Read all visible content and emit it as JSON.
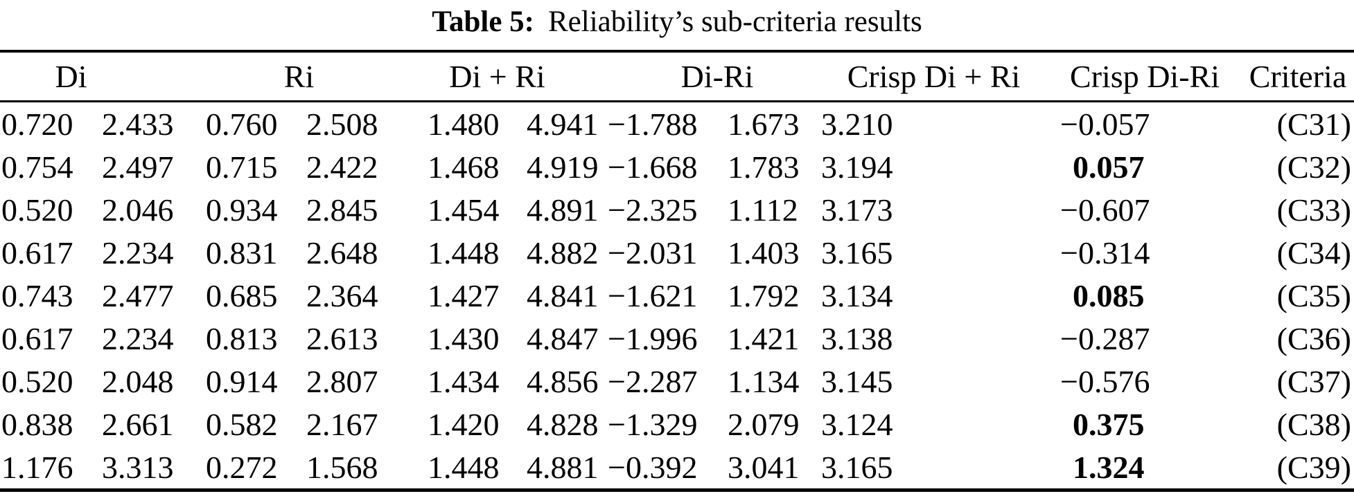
{
  "title": {
    "label": "Table 5:",
    "text": "Reliability’s sub-criteria results"
  },
  "table": {
    "group_headers": [
      {
        "label": "Di",
        "span": 2
      },
      {
        "label": "Ri",
        "span": 2
      },
      {
        "label": "Di + Ri",
        "span": 2
      },
      {
        "label": "Di-Ri",
        "span": 2
      },
      {
        "label": "Crisp Di + Ri",
        "span": 1
      },
      {
        "label": "Crisp Di-Ri",
        "span": 1
      },
      {
        "label": "Criteria",
        "span": 1
      }
    ],
    "column_keys": [
      "di_low",
      "di_high",
      "ri_low",
      "ri_high",
      "di_plus_ri_low",
      "di_plus_ri_high",
      "di_minus_ri_low",
      "di_minus_ri_high",
      "crisp_di_plus_ri",
      "crisp_di_minus_ri",
      "criteria"
    ],
    "rows": [
      {
        "cells": [
          "0.720",
          "2.433",
          "0.760",
          "2.508",
          "1.480",
          "4.941",
          "−1.788",
          "1.673",
          "3.210",
          "−0.057",
          "(C31)"
        ],
        "bold_cols": []
      },
      {
        "cells": [
          "0.754",
          "2.497",
          "0.715",
          "2.422",
          "1.468",
          "4.919",
          "−1.668",
          "1.783",
          "3.194",
          "0.057",
          "(C32)"
        ],
        "bold_cols": [
          9
        ]
      },
      {
        "cells": [
          "0.520",
          "2.046",
          "0.934",
          "2.845",
          "1.454",
          "4.891",
          "−2.325",
          "1.112",
          "3.173",
          "−0.607",
          "(C33)"
        ],
        "bold_cols": []
      },
      {
        "cells": [
          "0.617",
          "2.234",
          "0.831",
          "2.648",
          "1.448",
          "4.882",
          "−2.031",
          "1.403",
          "3.165",
          "−0.314",
          "(C34)"
        ],
        "bold_cols": []
      },
      {
        "cells": [
          "0.743",
          "2.477",
          "0.685",
          "2.364",
          "1.427",
          "4.841",
          "−1.621",
          "1.792",
          "3.134",
          "0.085",
          "(C35)"
        ],
        "bold_cols": [
          9
        ]
      },
      {
        "cells": [
          "0.617",
          "2.234",
          "0.813",
          "2.613",
          "1.430",
          "4.847",
          "−1.996",
          "1.421",
          "3.138",
          "−0.287",
          "(C36)"
        ],
        "bold_cols": []
      },
      {
        "cells": [
          "0.520",
          "2.048",
          "0.914",
          "2.807",
          "1.434",
          "4.856",
          "−2.287",
          "1.134",
          "3.145",
          "−0.576",
          "(C37)"
        ],
        "bold_cols": []
      },
      {
        "cells": [
          "0.838",
          "2.661",
          "0.582",
          "2.167",
          "1.420",
          "4.828",
          "−1.329",
          "2.079",
          "3.124",
          "0.375",
          "(C38)"
        ],
        "bold_cols": [
          9
        ]
      },
      {
        "cells": [
          "1.176",
          "3.313",
          "0.272",
          "1.568",
          "1.448",
          "4.881",
          "−0.392",
          "3.041",
          "3.165",
          "1.324",
          "(C39)"
        ],
        "bold_cols": [
          9
        ]
      }
    ]
  },
  "colors": {
    "text": "#000000",
    "background": "#ffffff",
    "rule": "#000000"
  }
}
